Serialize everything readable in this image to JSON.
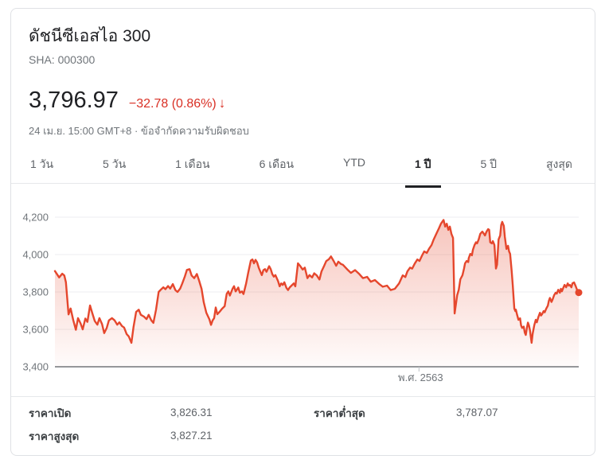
{
  "header": {
    "title": "ดัชนีซีเอสไอ 300",
    "exchange": "SHA: 000300",
    "price": "3,796.97",
    "change": "−32.78 (0.86%)",
    "change_direction": "down",
    "arrow_glyph": "↓",
    "timestamp": "24 เม.ย. 15:00 GMT+8 · ข้อจำกัดความรับผิดชอบ"
  },
  "colors": {
    "text_primary": "#202124",
    "text_secondary": "#70757a",
    "change_red": "#d93025",
    "line_red": "#e5472d",
    "grid": "#edeef0",
    "baseline": "#85898d",
    "tick": "#bdc1c6",
    "divider": "#e6e8ea",
    "card_border": "#dfe1e5"
  },
  "tabs": [
    {
      "id": "tab-1-day",
      "label": "1 วัน",
      "active": false
    },
    {
      "id": "tab-5-day",
      "label": "5 วัน",
      "active": false
    },
    {
      "id": "tab-1-month",
      "label": "1 เดือน",
      "active": false
    },
    {
      "id": "tab-6-month",
      "label": "6 เดือน",
      "active": false
    },
    {
      "id": "tab-ytd",
      "label": "YTD",
      "active": false
    },
    {
      "id": "tab-1-year",
      "label": "1 ปี",
      "active": true
    },
    {
      "id": "tab-5-year",
      "label": "5 ปี",
      "active": false
    },
    {
      "id": "tab-max",
      "label": "สูงสุด",
      "active": false
    }
  ],
  "chart_data": {
    "type": "area",
    "title": "CSI 300 index, 1-year range",
    "legend": [],
    "grid": true,
    "y_axis": {
      "ticks": [
        {
          "v": 4200,
          "label": "4,200"
        },
        {
          "v": 4000,
          "label": "4,000"
        },
        {
          "v": 3800,
          "label": "3,800"
        },
        {
          "v": 3600,
          "label": "3,600"
        },
        {
          "v": 3400,
          "label": "3,400"
        }
      ],
      "ylim": [
        3400,
        4290
      ]
    },
    "x_axis": {
      "tick_label": "พ.ศ. 2563",
      "tick_position_pct": 69.5,
      "range_note": "1 year window ending 24 เม.ย."
    },
    "end_dot": true,
    "last_value": 3796.97,
    "series": [
      {
        "name": "ดัชนีซีเอสไอ 300",
        "points": [
          [
            0,
            3912
          ],
          [
            0.8,
            3878
          ],
          [
            1.4,
            3898
          ],
          [
            1.8,
            3888
          ],
          [
            2.1,
            3852
          ],
          [
            2.6,
            3680
          ],
          [
            3,
            3712
          ],
          [
            3.5,
            3650
          ],
          [
            4,
            3598
          ],
          [
            4.4,
            3660
          ],
          [
            4.9,
            3632
          ],
          [
            5.3,
            3600
          ],
          [
            5.8,
            3658
          ],
          [
            6.2,
            3640
          ],
          [
            6.7,
            3728
          ],
          [
            7.1,
            3690
          ],
          [
            7.6,
            3645
          ],
          [
            8.1,
            3625
          ],
          [
            8.5,
            3660
          ],
          [
            9,
            3628
          ],
          [
            9.4,
            3580
          ],
          [
            9.9,
            3608
          ],
          [
            10.3,
            3648
          ],
          [
            10.9,
            3660
          ],
          [
            11.4,
            3648
          ],
          [
            11.9,
            3625
          ],
          [
            12.3,
            3638
          ],
          [
            12.8,
            3618
          ],
          [
            13.2,
            3610
          ],
          [
            13.7,
            3575
          ],
          [
            14.1,
            3562
          ],
          [
            14.6,
            3528
          ],
          [
            15,
            3612
          ],
          [
            15.5,
            3693
          ],
          [
            16,
            3705
          ],
          [
            16.4,
            3678
          ],
          [
            17,
            3668
          ],
          [
            17.5,
            3655
          ],
          [
            17.9,
            3678
          ],
          [
            18.4,
            3648
          ],
          [
            18.8,
            3635
          ],
          [
            19.3,
            3705
          ],
          [
            19.8,
            3800
          ],
          [
            20.2,
            3812
          ],
          [
            20.7,
            3825
          ],
          [
            21.1,
            3815
          ],
          [
            21.6,
            3832
          ],
          [
            22,
            3818
          ],
          [
            22.5,
            3842
          ],
          [
            23,
            3810
          ],
          [
            23.4,
            3800
          ],
          [
            23.9,
            3818
          ],
          [
            24.3,
            3845
          ],
          [
            24.8,
            3883
          ],
          [
            25.2,
            3918
          ],
          [
            25.7,
            3922
          ],
          [
            26.1,
            3888
          ],
          [
            26.6,
            3874
          ],
          [
            27.1,
            3896
          ],
          [
            27.5,
            3862
          ],
          [
            28,
            3817
          ],
          [
            28.4,
            3746
          ],
          [
            28.9,
            3689
          ],
          [
            29.5,
            3653
          ],
          [
            29.8,
            3624
          ],
          [
            30.1,
            3648
          ],
          [
            30.4,
            3660
          ],
          [
            30.7,
            3717
          ],
          [
            31,
            3681
          ],
          [
            31.5,
            3696
          ],
          [
            31.9,
            3710
          ],
          [
            32.4,
            3724
          ],
          [
            32.8,
            3790
          ],
          [
            33.1,
            3803
          ],
          [
            33.4,
            3781
          ],
          [
            33.9,
            3817
          ],
          [
            34.2,
            3831
          ],
          [
            34.5,
            3803
          ],
          [
            35,
            3824
          ],
          [
            35.3,
            3796
          ],
          [
            35.7,
            3803
          ],
          [
            36,
            3789
          ],
          [
            36.5,
            3846
          ],
          [
            36.9,
            3903
          ],
          [
            37.4,
            3968
          ],
          [
            37.7,
            3974
          ],
          [
            38,
            3953
          ],
          [
            38.3,
            3972
          ],
          [
            38.6,
            3958
          ],
          [
            38.9,
            3930
          ],
          [
            39.2,
            3910
          ],
          [
            39.5,
            3890
          ],
          [
            39.8,
            3917
          ],
          [
            40.1,
            3922
          ],
          [
            40.4,
            3908
          ],
          [
            40.9,
            3938
          ],
          [
            41.2,
            3922
          ],
          [
            41.5,
            3895
          ],
          [
            41.8,
            3882
          ],
          [
            42.1,
            3890
          ],
          [
            42.6,
            3858
          ],
          [
            42.9,
            3830
          ],
          [
            43.2,
            3846
          ],
          [
            43.5,
            3838
          ],
          [
            43.8,
            3852
          ],
          [
            44.2,
            3822
          ],
          [
            44.5,
            3810
          ],
          [
            44.8,
            3824
          ],
          [
            45.3,
            3838
          ],
          [
            45.6,
            3846
          ],
          [
            45.9,
            3830
          ],
          [
            46.4,
            3953
          ],
          [
            46.8,
            3940
          ],
          [
            47.3,
            3920
          ],
          [
            47.7,
            3930
          ],
          [
            48.2,
            3874
          ],
          [
            48.6,
            3890
          ],
          [
            49.1,
            3878
          ],
          [
            49.5,
            3900
          ],
          [
            50,
            3888
          ],
          [
            50.5,
            3867
          ],
          [
            50.9,
            3910
          ],
          [
            51.4,
            3940
          ],
          [
            51.8,
            3965
          ],
          [
            52.3,
            3975
          ],
          [
            52.7,
            3990
          ],
          [
            53.2,
            3966
          ],
          [
            53.7,
            3940
          ],
          [
            54.1,
            3962
          ],
          [
            54.6,
            3950
          ],
          [
            55,
            3945
          ],
          [
            55.8,
            3921
          ],
          [
            56.5,
            3902
          ],
          [
            57.3,
            3917
          ],
          [
            58.1,
            3896
          ],
          [
            58.8,
            3874
          ],
          [
            59.6,
            3881
          ],
          [
            60.3,
            3855
          ],
          [
            61.1,
            3864
          ],
          [
            61.9,
            3843
          ],
          [
            62.6,
            3828
          ],
          [
            63.4,
            3834
          ],
          [
            64.1,
            3810
          ],
          [
            64.9,
            3817
          ],
          [
            65.7,
            3846
          ],
          [
            66.4,
            3889
          ],
          [
            66.9,
            3880
          ],
          [
            67.3,
            3910
          ],
          [
            67.8,
            3930
          ],
          [
            68.2,
            3925
          ],
          [
            68.7,
            3952
          ],
          [
            69.2,
            3974
          ],
          [
            69.6,
            3966
          ],
          [
            70.1,
            3996
          ],
          [
            70.5,
            4017
          ],
          [
            71,
            4009
          ],
          [
            71.4,
            4030
          ],
          [
            71.9,
            4051
          ],
          [
            72.3,
            4080
          ],
          [
            72.8,
            4110
          ],
          [
            73.3,
            4140
          ],
          [
            73.7,
            4165
          ],
          [
            74.2,
            4185
          ],
          [
            74.5,
            4150
          ],
          [
            74.8,
            4165
          ],
          [
            75.1,
            4132
          ],
          [
            75.4,
            4150
          ],
          [
            75.7,
            4110
          ],
          [
            76,
            4089
          ],
          [
            76.3,
            3685
          ],
          [
            76.8,
            3783
          ],
          [
            77.1,
            3812
          ],
          [
            77.4,
            3868
          ],
          [
            77.8,
            3889
          ],
          [
            78.1,
            3925
          ],
          [
            78.3,
            3953
          ],
          [
            78.6,
            3966
          ],
          [
            78.9,
            3960
          ],
          [
            79,
            3981
          ],
          [
            79.3,
            4004
          ],
          [
            79.6,
            3996
          ],
          [
            79.8,
            4026
          ],
          [
            80.1,
            4051
          ],
          [
            80.4,
            4066
          ],
          [
            80.6,
            4060
          ],
          [
            80.9,
            4081
          ],
          [
            81.2,
            4111
          ],
          [
            81.6,
            4123
          ],
          [
            81.9,
            4111
          ],
          [
            82.1,
            4102
          ],
          [
            82.4,
            4123
          ],
          [
            82.7,
            4136
          ],
          [
            82.9,
            4132
          ],
          [
            83.1,
            4066
          ],
          [
            83.4,
            4060
          ],
          [
            83.6,
            4072
          ],
          [
            83.9,
            4051
          ],
          [
            84.2,
            3925
          ],
          [
            84.4,
            3947
          ],
          [
            84.7,
            4081
          ],
          [
            85,
            4102
          ],
          [
            85.2,
            4158
          ],
          [
            85.4,
            4175
          ],
          [
            85.7,
            4153
          ],
          [
            85.9,
            4094
          ],
          [
            86.2,
            4030
          ],
          [
            86.5,
            4047
          ],
          [
            86.7,
            4017
          ],
          [
            86.9,
            4004
          ],
          [
            87.2,
            3910
          ],
          [
            87.4,
            3838
          ],
          [
            87.7,
            3711
          ],
          [
            87.9,
            3698
          ],
          [
            88,
            3706
          ],
          [
            88.2,
            3681
          ],
          [
            88.5,
            3651
          ],
          [
            88.8,
            3659
          ],
          [
            89,
            3621
          ],
          [
            89.2,
            3608
          ],
          [
            89.5,
            3615
          ],
          [
            89.7,
            3583
          ],
          [
            89.9,
            3570
          ],
          [
            90.1,
            3608
          ],
          [
            90.3,
            3636
          ],
          [
            90.5,
            3621
          ],
          [
            90.7,
            3593
          ],
          [
            91,
            3528
          ],
          [
            91.2,
            3576
          ],
          [
            91.5,
            3621
          ],
          [
            91.8,
            3651
          ],
          [
            92,
            3638
          ],
          [
            92.3,
            3666
          ],
          [
            92.6,
            3689
          ],
          [
            92.8,
            3674
          ],
          [
            93,
            3681
          ],
          [
            93.3,
            3698
          ],
          [
            93.5,
            3691
          ],
          [
            93.8,
            3711
          ],
          [
            94.1,
            3727
          ],
          [
            94.3,
            3753
          ],
          [
            94.5,
            3768
          ],
          [
            94.8,
            3747
          ],
          [
            95,
            3759
          ],
          [
            95.3,
            3783
          ],
          [
            95.6,
            3796
          ],
          [
            95.8,
            3791
          ],
          [
            96.1,
            3812
          ],
          [
            96.4,
            3796
          ],
          [
            96.6,
            3817
          ],
          [
            96.8,
            3804
          ],
          [
            97.1,
            3825
          ],
          [
            97.3,
            3838
          ],
          [
            97.6,
            3825
          ],
          [
            97.9,
            3846
          ],
          [
            98.1,
            3834
          ],
          [
            98.3,
            3838
          ],
          [
            98.6,
            3825
          ],
          [
            98.8,
            3846
          ],
          [
            99.1,
            3851
          ],
          [
            99.4,
            3832
          ],
          [
            99.7,
            3810
          ],
          [
            100,
            3797
          ]
        ]
      }
    ]
  },
  "stats": {
    "rows": [
      {
        "label": "ราคาเปิด",
        "value": "3,826.31",
        "label2": "ราคาต่ำสุด",
        "value2": "3,787.07"
      },
      {
        "label": "ราคาสูงสุด",
        "value": "3,827.21",
        "label2": "",
        "value2": ""
      }
    ]
  }
}
